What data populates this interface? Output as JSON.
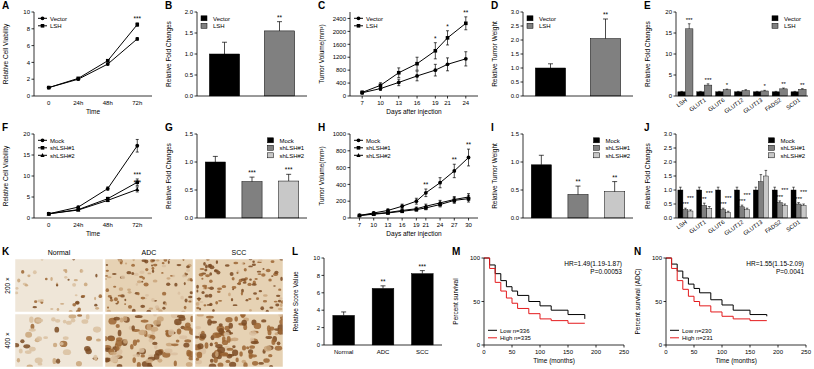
{
  "chart_data": [
    {
      "panel": "A",
      "type": "line",
      "categories": [
        "0",
        "24h",
        "48h",
        "72h"
      ],
      "x_label": "Time",
      "y_label": "Relative Cell Viability",
      "ylim": [
        0,
        10
      ],
      "yticks": [
        0,
        2,
        4,
        6,
        8,
        10
      ],
      "legend": "upper-left",
      "series": [
        {
          "name": "Vector",
          "color": "#000000",
          "marker": "circle",
          "values": [
            1,
            2.0,
            3.8,
            6.8
          ],
          "errors": [
            0.05,
            0.08,
            0.1,
            0.15
          ]
        },
        {
          "name": "LSH",
          "color": "#000000",
          "marker": "square",
          "values": [
            1,
            2.1,
            4.2,
            8.5
          ],
          "errors": [
            0.05,
            0.08,
            0.12,
            0.2
          ],
          "significance": [
            null,
            null,
            null,
            "***"
          ]
        }
      ]
    },
    {
      "panel": "B",
      "type": "bar",
      "categories": [
        "Vector",
        "LSH"
      ],
      "values": [
        1.0,
        1.55
      ],
      "errors": [
        0.28,
        0.22
      ],
      "colors": [
        "#000000",
        "#808080"
      ],
      "significance": [
        null,
        "**"
      ],
      "y_label": "Relative Fold Changes",
      "ylim": [
        0,
        2
      ],
      "yticks": [
        {
          "value": 0,
          "label": "0.0"
        },
        {
          "value": 0.5,
          "label": "0.5"
        },
        {
          "value": 1,
          "label": "1.0"
        },
        {
          "value": 1.5,
          "label": "1.5"
        },
        {
          "value": 2,
          "label": "2.0"
        }
      ],
      "legend": "upper-left",
      "tick_labels": "y"
    },
    {
      "panel": "C",
      "type": "line",
      "x": [
        7,
        10,
        13,
        16,
        19,
        21,
        24
      ],
      "xlim": [
        5,
        26
      ],
      "xticks": [
        7,
        10,
        13,
        16,
        19,
        21,
        24
      ],
      "x_label": "Days after injection",
      "y_label": "Tumor Volume(mm³)",
      "ylim": [
        0,
        2600
      ],
      "yticks": [
        0,
        400,
        800,
        1200,
        1600,
        2000,
        2400
      ],
      "legend": "upper-left",
      "series": [
        {
          "name": "Vector",
          "color": "#000000",
          "marker": "circle",
          "values": [
            100,
            230,
            420,
            620,
            800,
            980,
            1150
          ],
          "errors": [
            30,
            60,
            100,
            150,
            180,
            200,
            220
          ]
        },
        {
          "name": "LSH",
          "color": "#000000",
          "marker": "square",
          "values": [
            110,
            330,
            720,
            1000,
            1400,
            1800,
            2250
          ],
          "errors": [
            40,
            80,
            150,
            200,
            250,
            220,
            200
          ],
          "significance": [
            null,
            null,
            null,
            null,
            "*",
            "*",
            "**"
          ]
        }
      ]
    },
    {
      "panel": "D",
      "type": "bar",
      "categories": [
        "Vector",
        "LSH"
      ],
      "values": [
        1.0,
        2.05
      ],
      "errors": [
        0.15,
        0.7
      ],
      "colors": [
        "#000000",
        "#808080"
      ],
      "significance": [
        null,
        "**"
      ],
      "y_label": "Relative Tumor Weight",
      "ylim": [
        0,
        3
      ],
      "yticks": [
        {
          "value": 0,
          "label": "0.0"
        },
        {
          "value": 0.5,
          "label": "0.5"
        },
        {
          "value": 1,
          "label": "1.0"
        },
        {
          "value": 1.5,
          "label": "1.5"
        },
        {
          "value": 2,
          "label": "2.0"
        },
        {
          "value": 2.5,
          "label": "2.5"
        },
        {
          "value": 3,
          "label": "3.0"
        }
      ],
      "legend": "upper-left",
      "tick_labels": "y"
    },
    {
      "panel": "E",
      "type": "bar",
      "categories": [
        "LSH",
        "GLUT1",
        "GLUT6",
        "GLUT12",
        "GLUT13",
        "FADS2",
        "SCD1"
      ],
      "y_label": "Relative Fold Changes",
      "ylim": [
        0,
        20
      ],
      "yticks": [
        0,
        5,
        10,
        15,
        20
      ],
      "legend": "upper-right",
      "series": [
        {
          "name": "Vector",
          "color": "#000000",
          "values": [
            1,
            1,
            1,
            1,
            1,
            1,
            1
          ],
          "errors": [
            0.1,
            0.1,
            0.1,
            0.1,
            0.1,
            0.1,
            0.1
          ]
        },
        {
          "name": "LSH",
          "color": "#808080",
          "values": [
            16,
            2.6,
            1.5,
            1.3,
            1.2,
            1.7,
            1.6
          ],
          "errors": [
            1.2,
            0.3,
            0.15,
            0.2,
            0.15,
            0.2,
            0.15
          ],
          "significance": [
            "***",
            "***",
            "*",
            null,
            "*",
            "**",
            "**"
          ]
        }
      ]
    },
    {
      "panel": "F",
      "type": "line",
      "categories": [
        "0",
        "24h",
        "48h",
        "72h"
      ],
      "x_label": "Time",
      "y_label": "Relative Cell Viability",
      "ylim": [
        0,
        20
      ],
      "yticks": [
        0,
        5,
        10,
        15,
        20
      ],
      "legend": "upper-left",
      "series": [
        {
          "name": "Mock",
          "color": "#000000",
          "marker": "circle",
          "values": [
            1,
            2.6,
            7,
            17.2
          ],
          "errors": [
            0.1,
            0.2,
            0.4,
            1.5
          ]
        },
        {
          "name": "shLSH#1",
          "color": "#000000",
          "marker": "square",
          "values": [
            1,
            2,
            4.6,
            8.5
          ],
          "errors": [
            0.1,
            0.15,
            0.3,
            0.8
          ],
          "significance": [
            null,
            null,
            null,
            "***"
          ]
        },
        {
          "name": "shLSH#2",
          "color": "#000000",
          "marker": "triangle",
          "values": [
            1,
            1.9,
            4.2,
            6.8
          ],
          "errors": [
            0.1,
            0.15,
            0.3,
            0.6
          ],
          "significance": [
            null,
            null,
            null,
            "***"
          ]
        }
      ]
    },
    {
      "panel": "G",
      "type": "bar",
      "categories": [
        "Mock",
        "shLSH#1",
        "shLSH#2"
      ],
      "values": [
        1.0,
        0.65,
        0.66
      ],
      "errors": [
        0.1,
        0.08,
        0.12
      ],
      "colors": [
        "#000000",
        "#808080",
        "#c8c8c8"
      ],
      "significance": [
        null,
        "***",
        "***"
      ],
      "y_label": "Relative Fold Changes",
      "ylim": [
        0,
        1.5
      ],
      "yticks": [
        {
          "value": 0,
          "label": "0.0"
        },
        {
          "value": 0.5,
          "label": "0.5"
        },
        {
          "value": 1,
          "label": "1.0"
        },
        {
          "value": 1.5,
          "label": "1.5"
        }
      ],
      "legend": "upper-right",
      "tick_labels": "y"
    },
    {
      "panel": "H",
      "type": "line",
      "x": [
        7,
        10,
        13,
        16,
        19,
        21,
        24,
        27,
        30
      ],
      "xlim": [
        5,
        32
      ],
      "xticks": [
        7,
        10,
        13,
        16,
        19,
        21,
        24,
        27,
        30
      ],
      "x_label": "Days after injection",
      "y_label": "Tumor Volume(mm³)",
      "ylim": [
        0,
        1000
      ],
      "yticks": [
        0,
        200,
        400,
        600,
        800,
        1000
      ],
      "legend": "upper-left",
      "series": [
        {
          "name": "Mock",
          "color": "#000000",
          "marker": "circle",
          "values": [
            30,
            60,
            90,
            140,
            200,
            300,
            420,
            560,
            720
          ],
          "errors": [
            8,
            12,
            18,
            25,
            35,
            45,
            60,
            80,
            100
          ],
          "significance": [
            null,
            null,
            null,
            null,
            null,
            "**",
            null,
            "**",
            "**"
          ]
        },
        {
          "name": "shLSH#1",
          "color": "#000000",
          "marker": "square",
          "values": [
            30,
            45,
            60,
            80,
            100,
            120,
            160,
            210,
            230
          ],
          "errors": [
            8,
            10,
            12,
            15,
            18,
            22,
            28,
            35,
            40
          ]
        },
        {
          "name": "shLSH#2",
          "color": "#000000",
          "marker": "triangle",
          "values": [
            30,
            50,
            65,
            90,
            110,
            140,
            180,
            220,
            250
          ],
          "errors": [
            8,
            10,
            12,
            15,
            20,
            25,
            30,
            35,
            40
          ]
        }
      ]
    },
    {
      "panel": "I",
      "type": "bar",
      "categories": [
        "Mock",
        "shLSH#1",
        "shLSH#2"
      ],
      "values": [
        0.95,
        0.42,
        0.47
      ],
      "errors": [
        0.17,
        0.15,
        0.18
      ],
      "colors": [
        "#000000",
        "#808080",
        "#c8c8c8"
      ],
      "significance": [
        null,
        "**",
        "**"
      ],
      "y_label": "Relative Tumor Weight",
      "ylim": [
        0,
        1.5
      ],
      "yticks": [
        {
          "value": 0,
          "label": "0.0"
        },
        {
          "value": 0.5,
          "label": "0.5"
        },
        {
          "value": 1,
          "label": "1.0"
        },
        {
          "value": 1.5,
          "label": "1.5"
        }
      ],
      "legend": "upper-right",
      "tick_labels": "y"
    },
    {
      "panel": "J",
      "type": "bar",
      "categories": [
        "LSH",
        "GLUT1",
        "GLUT6",
        "GLUT12",
        "GLUT13",
        "FADS2",
        "SCD1"
      ],
      "y_label": "Relative Fold Changes",
      "ylim": [
        0,
        3
      ],
      "yticks": [
        {
          "value": 0,
          "label": "0.0"
        },
        {
          "value": 0.5,
          "label": "0.5"
        },
        {
          "value": 1,
          "label": "1.0"
        },
        {
          "value": 1.5,
          "label": "1.5"
        },
        {
          "value": 2,
          "label": "2.0"
        },
        {
          "value": 2.5,
          "label": "2.5"
        },
        {
          "value": 3,
          "label": "3.0"
        }
      ],
      "legend": "upper-right",
      "series": [
        {
          "name": "Mock",
          "color": "#000000",
          "values": [
            1,
            1,
            1,
            1,
            1,
            1,
            1
          ],
          "errors": [
            0.1,
            0.1,
            0.1,
            0.1,
            0.1,
            0.1,
            0.1
          ]
        },
        {
          "name": "shLSH#1",
          "color": "#808080",
          "values": [
            0.3,
            0.45,
            0.3,
            0.4,
            1.3,
            0.55,
            0.5
          ],
          "errors": [
            0.05,
            0.08,
            0.05,
            0.06,
            0.25,
            0.06,
            0.05
          ],
          "significance": [
            "***",
            "**",
            "***",
            "***",
            null,
            "***",
            "***"
          ]
        },
        {
          "name": "shLSH#2",
          "color": "#c8c8c8",
          "values": [
            0.25,
            0.35,
            0.2,
            0.3,
            1.5,
            0.45,
            0.45
          ],
          "errors": [
            0.04,
            0.06,
            0.04,
            0.05,
            0.2,
            0.05,
            0.05
          ],
          "significance": [
            "***",
            "***",
            "***",
            "***",
            null,
            "***",
            "***"
          ]
        }
      ]
    },
    {
      "panel": "L",
      "type": "bar",
      "categories": [
        "Normal",
        "ADC",
        "SCC"
      ],
      "values": [
        3.4,
        6.5,
        8.2
      ],
      "errors": [
        0.4,
        0.3,
        0.35
      ],
      "colors": [
        "#000000",
        "#000000",
        "#000000"
      ],
      "significance": [
        null,
        "**",
        "***"
      ],
      "y_label": "Relative Score Value",
      "ylim": [
        0,
        10
      ],
      "yticks": [
        0,
        2,
        4,
        6,
        8,
        10
      ]
    },
    {
      "panel": "M",
      "type": "step",
      "x": [
        0,
        10,
        20,
        30,
        40,
        50,
        60,
        80,
        100,
        120,
        150,
        180
      ],
      "xlim": [
        0,
        250
      ],
      "xticks": [
        0,
        50,
        100,
        150,
        200,
        250
      ],
      "x_label": "Time (months)",
      "y_label": "Percent survival",
      "ylim": [
        0,
        100
      ],
      "yticks": [
        0,
        50,
        100
      ],
      "annotations": [
        "HR=1.49(1.19-1.87)",
        "P=0.00053"
      ],
      "legend": "lower-left",
      "series": [
        {
          "name": "Low n=336",
          "color": "#000000",
          "values": [
            100,
            92,
            82,
            74,
            67,
            62,
            57,
            50,
            45,
            40,
            35,
            30
          ]
        },
        {
          "name": "High n=335",
          "color": "#e41a1c",
          "values": [
            100,
            88,
            72,
            62,
            54,
            48,
            42,
            36,
            30,
            28,
            25,
            25
          ]
        }
      ]
    },
    {
      "panel": "N",
      "type": "step",
      "x": [
        0,
        10,
        20,
        30,
        40,
        50,
        60,
        80,
        100,
        120,
        150,
        180
      ],
      "xlim": [
        0,
        250
      ],
      "xticks": [
        0,
        50,
        100,
        150,
        200,
        250
      ],
      "x_label": "Time (months)",
      "y_label": "Percent survival (ADC)",
      "ylim": [
        0,
        100
      ],
      "yticks": [
        0,
        50,
        100
      ],
      "annotations": [
        "HR=1.55(1.15-2.09)",
        "P=0.0041"
      ],
      "legend": "lower-left",
      "series": [
        {
          "name": "Low n=230",
          "color": "#000000",
          "values": [
            100,
            93,
            85,
            77,
            70,
            65,
            60,
            52,
            46,
            40,
            35,
            33
          ]
        },
        {
          "name": "High n=231",
          "color": "#e41a1c",
          "values": [
            100,
            88,
            74,
            64,
            56,
            50,
            45,
            38,
            33,
            30,
            28,
            28
          ]
        }
      ]
    }
  ],
  "image_panel": {
    "panel": "K",
    "columns": [
      "Normal",
      "ADC",
      "SCC"
    ],
    "rows": [
      "200 ×",
      "400 ×"
    ]
  }
}
